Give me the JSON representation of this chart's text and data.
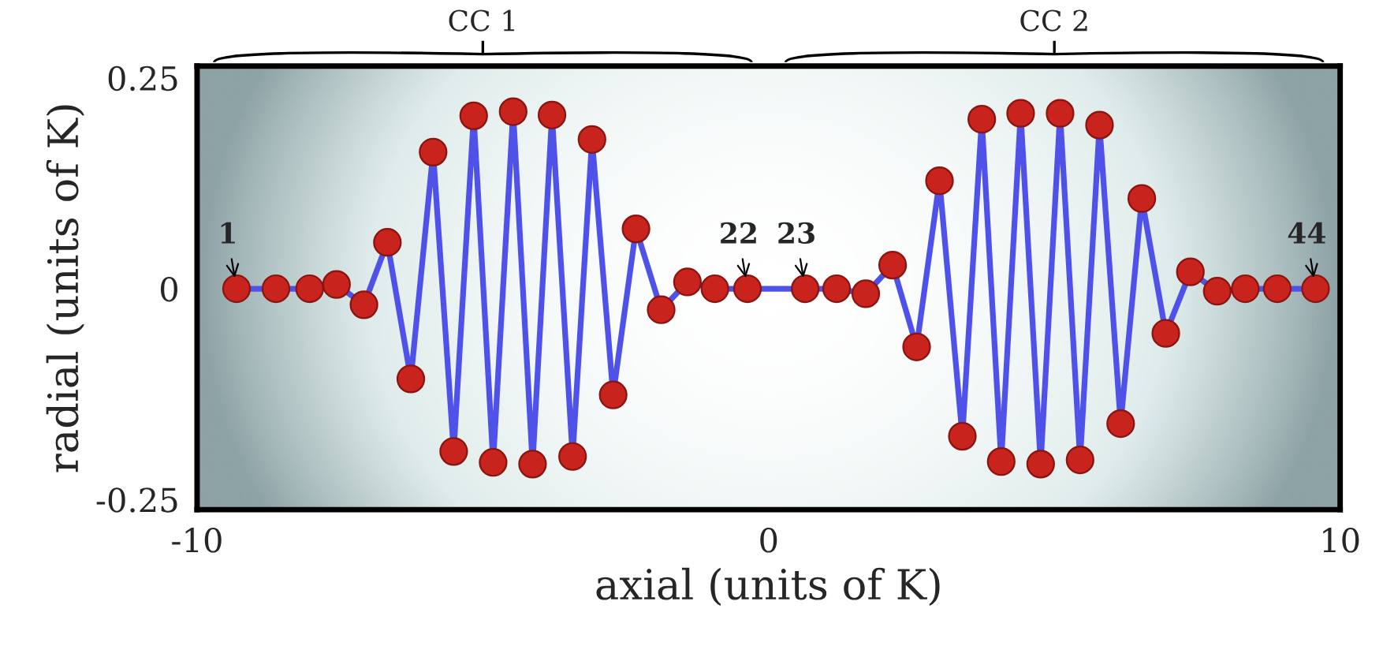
{
  "chart_data": {
    "type": "line",
    "xlabel": "axial (units of K)",
    "ylabel": "radial (units of K)",
    "xlim": [
      -10,
      10
    ],
    "ylim": [
      -0.262,
      0.264
    ],
    "xticks": [
      {
        "value": -10,
        "label": "-10"
      },
      0,
      10
    ],
    "yticks": [
      {
        "value": -0.25,
        "label": "-0.25"
      },
      0,
      0.25
    ],
    "grid": false,
    "marker": "circle",
    "line_style": "solid",
    "series": [
      {
        "marker": "none",
        "color": "#4f52e8",
        "x": [
          -9.31,
          -8.62,
          -8.03,
          -7.56,
          -7.08,
          -6.67,
          -6.26,
          -5.87,
          -5.51,
          -5.16,
          -4.82,
          -4.47,
          -4.13,
          -3.79,
          -3.43,
          -3.09,
          -2.72,
          -2.32,
          -1.88,
          -1.42,
          -0.94,
          -0.37,
          0.64,
          1.19,
          1.7,
          2.17,
          2.59,
          2.99,
          3.39,
          3.73,
          4.07,
          4.41,
          4.76,
          5.1,
          5.45,
          5.79,
          6.16,
          6.53,
          6.95,
          7.38,
          7.85,
          8.34,
          8.9,
          9.57
        ],
        "values": [
          0,
          0,
          0,
          0.005,
          -0.019,
          0.055,
          -0.107,
          0.162,
          -0.193,
          0.205,
          -0.206,
          0.21,
          -0.208,
          0.206,
          -0.199,
          0.177,
          -0.126,
          0.071,
          -0.025,
          0.008,
          0,
          0,
          0,
          0,
          -0.006,
          0.028,
          -0.069,
          0.128,
          -0.175,
          0.201,
          -0.205,
          0.208,
          -0.208,
          0.208,
          -0.203,
          0.194,
          -0.16,
          0.107,
          -0.053,
          0.02,
          -0.003,
          0,
          0,
          0
        ]
      },
      {
        "type": "scatter",
        "color": "#c8231c",
        "x": [
          -9.31,
          -8.62,
          -8.03,
          -7.56,
          -7.08,
          -6.67,
          -6.26,
          -5.87,
          -5.51,
          -5.16,
          -4.82,
          -4.47,
          -4.13,
          -3.79,
          -3.43,
          -3.09,
          -2.72,
          -2.32,
          -1.88,
          -1.42,
          -0.94,
          -0.37,
          0.64,
          1.19,
          1.7,
          2.17,
          2.59,
          2.99,
          3.39,
          3.73,
          4.07,
          4.41,
          4.76,
          5.1,
          5.45,
          5.79,
          6.16,
          6.53,
          6.95,
          7.38,
          7.85,
          8.34,
          8.9,
          9.57
        ],
        "values": [
          0,
          0,
          0,
          0.005,
          -0.019,
          0.055,
          -0.107,
          0.162,
          -0.193,
          0.205,
          -0.206,
          0.21,
          -0.208,
          0.206,
          -0.199,
          0.177,
          -0.126,
          0.071,
          -0.025,
          0.008,
          0,
          0,
          0,
          0,
          -0.006,
          0.028,
          -0.069,
          0.128,
          -0.175,
          0.201,
          -0.205,
          0.208,
          -0.208,
          0.208,
          -0.203,
          0.194,
          -0.16,
          0.107,
          -0.053,
          0.02,
          -0.003,
          0,
          0,
          0
        ]
      }
    ],
    "annotations": [
      {
        "text": "1",
        "x": -9.31,
        "y": 0
      },
      {
        "text": "22",
        "x": -0.37,
        "y": 0
      },
      {
        "text": "23",
        "x": 0.64,
        "y": 0
      },
      {
        "text": "44",
        "x": 9.57,
        "y": 0
      },
      "CC 1",
      "CC 2"
    ]
  }
}
